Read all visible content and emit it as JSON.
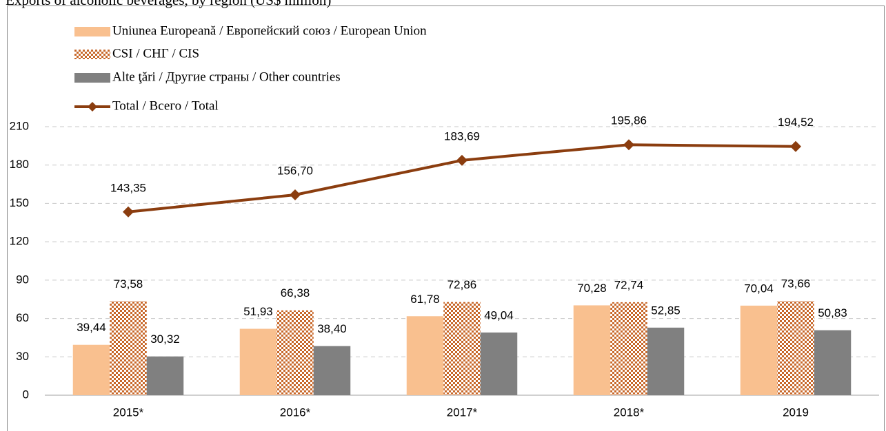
{
  "chart_data": {
    "type": "bar",
    "title": "Exports of alcoholic beverages, by region (US$ million)",
    "categories": [
      "2015*",
      "2016*",
      "2017*",
      "2018*",
      "2019"
    ],
    "series": [
      {
        "name": "Uniunea Europeană / Европейский союз / European Union",
        "color": "#f9c08f",
        "values": [
          39.44,
          51.93,
          61.78,
          70.28,
          70.04
        ],
        "value_labels": [
          "39,44",
          "51,93",
          "61,78",
          "70,28",
          "70,04"
        ]
      },
      {
        "name": "CSI / СНГ / CIS",
        "color": "#c8682a",
        "pattern": "checker",
        "values": [
          73.58,
          66.38,
          72.86,
          72.74,
          73.66
        ],
        "value_labels": [
          "73,58",
          "66,38",
          "72,86",
          "72,74",
          "73,66"
        ]
      },
      {
        "name": "Alte ţări / Другие страны / Other countries",
        "color": "#808080",
        "values": [
          30.32,
          38.4,
          49.04,
          52.85,
          50.83
        ],
        "value_labels": [
          "30,32",
          "38,40",
          "49,04",
          "52,85",
          "50,83"
        ]
      },
      {
        "name": "Total / Всего / Total",
        "type": "line",
        "color": "#8b3d0f",
        "values": [
          143.35,
          156.7,
          183.69,
          195.86,
          194.52
        ],
        "value_labels": [
          "143,35",
          "156,70",
          "183,69",
          "195,86",
          "194,52"
        ]
      }
    ],
    "ylim": [
      0,
      210
    ],
    "yticks": [
      0,
      30,
      60,
      90,
      120,
      150,
      180,
      210
    ],
    "grid": true,
    "legend": "top-left"
  }
}
